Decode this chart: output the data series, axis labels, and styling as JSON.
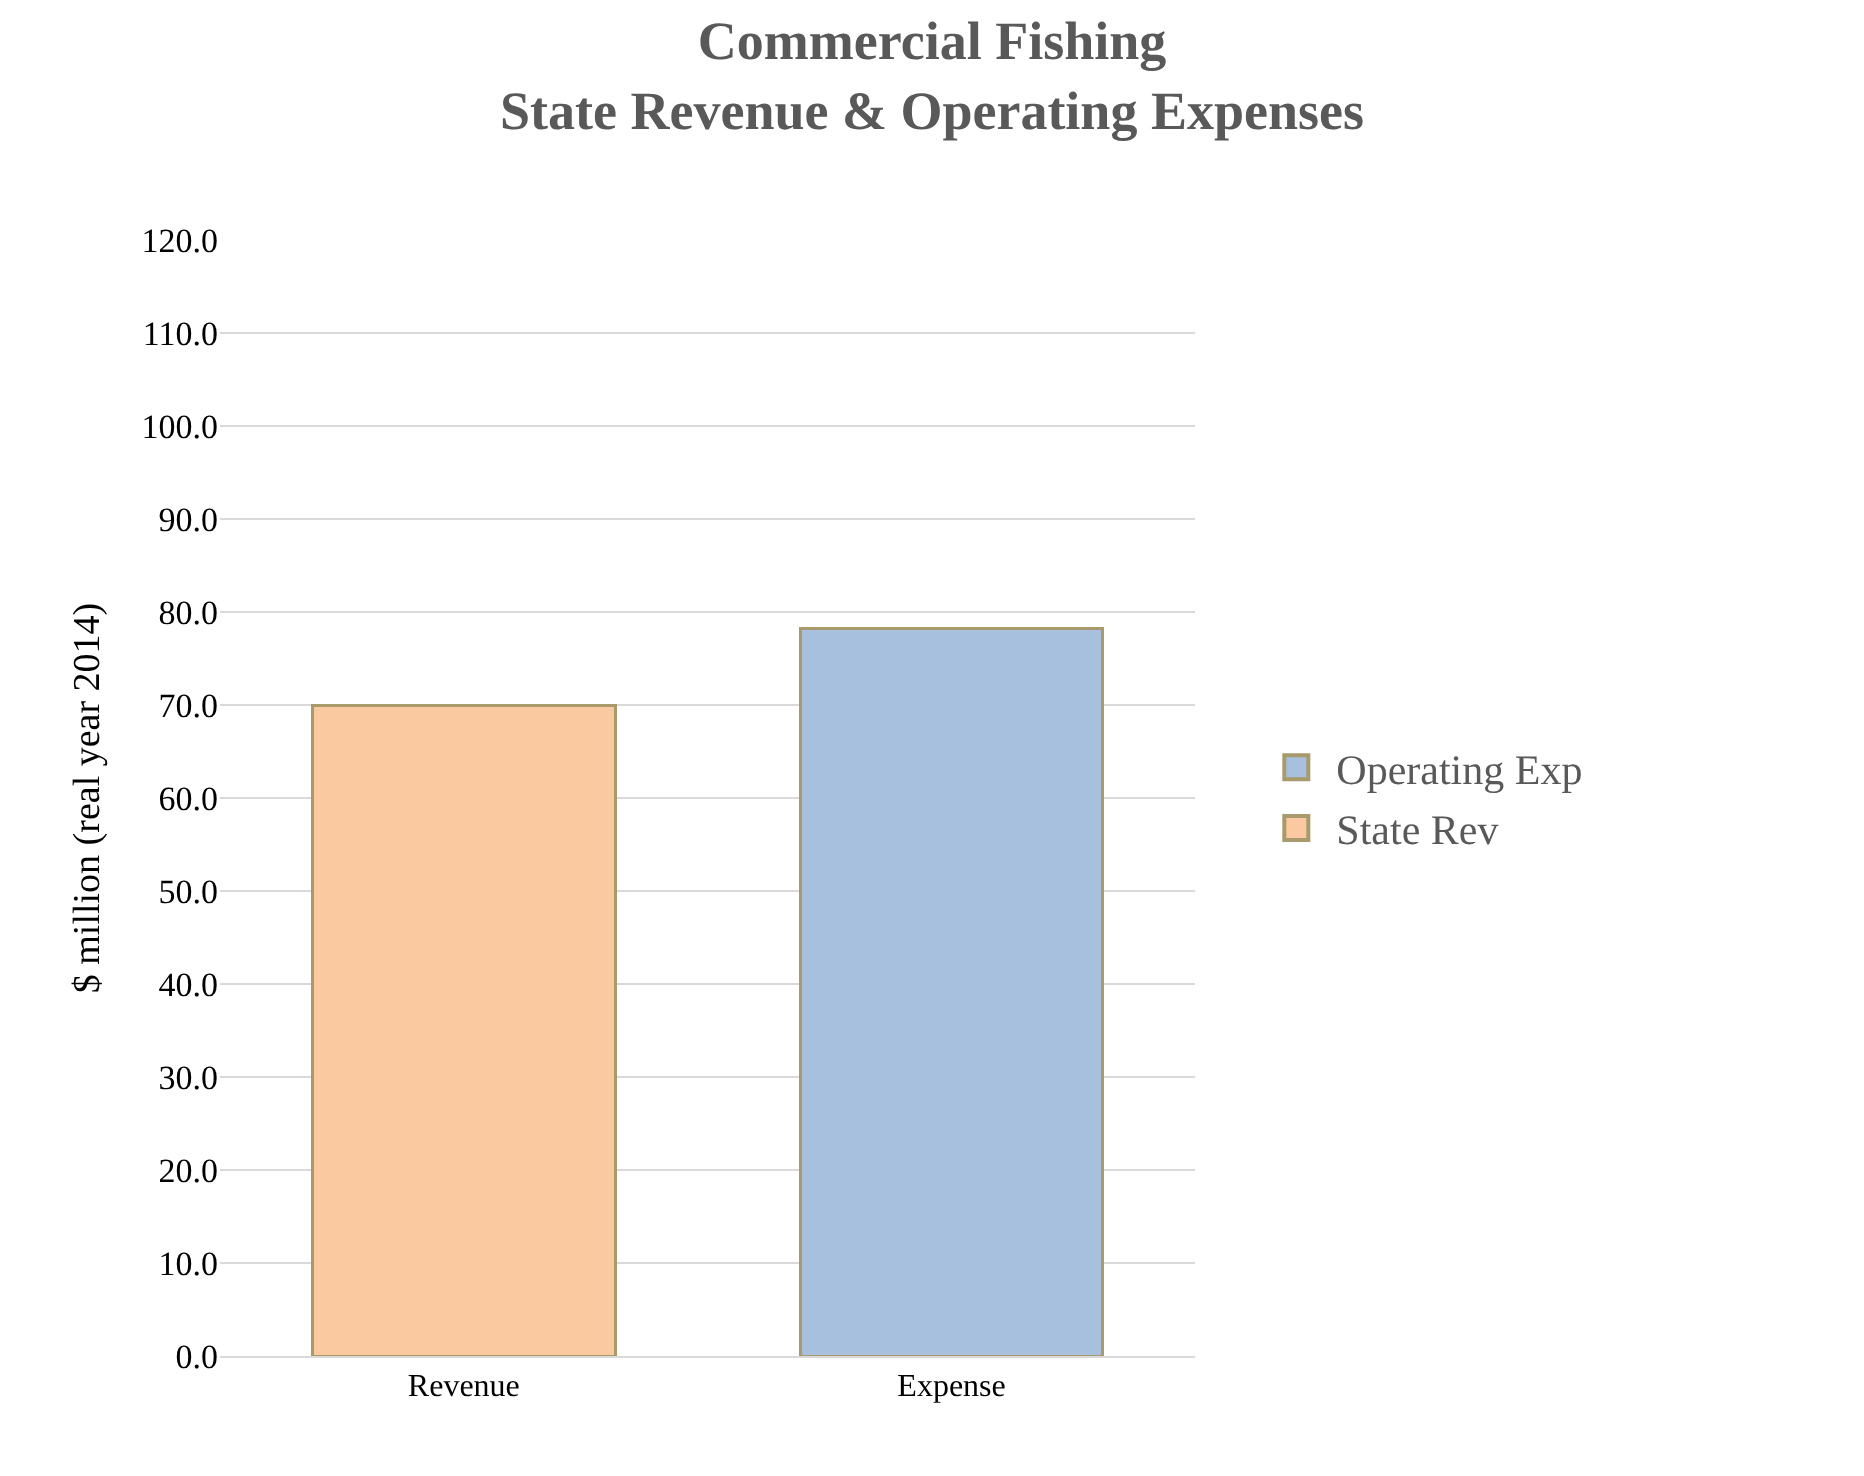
{
  "chart_data": {
    "type": "bar",
    "title": "Commercial Fishing\nState Revenue & Operating Expenses",
    "ylabel": "$ million (real year 2014)",
    "categories": [
      "Revenue",
      "Expense"
    ],
    "stacked": true,
    "series": [
      {
        "name": "State Rev",
        "color": "#fac99f",
        "values": [
          70.0,
          null
        ]
      },
      {
        "name": "Operating Exp",
        "color": "#a7c0de",
        "values": [
          null,
          78.2
        ]
      }
    ],
    "ylim": [
      0,
      120
    ],
    "yticks": [
      {
        "value": 0,
        "label": "0.0"
      },
      {
        "value": 10,
        "label": "10.0"
      },
      {
        "value": 20,
        "label": "20.0"
      },
      {
        "value": 30,
        "label": "30.0"
      },
      {
        "value": 40,
        "label": "40.0"
      },
      {
        "value": 50,
        "label": "50.0"
      },
      {
        "value": 60,
        "label": "60.0"
      },
      {
        "value": 70,
        "label": "70.0"
      },
      {
        "value": 80,
        "label": "80.0"
      },
      {
        "value": 90,
        "label": "90.0"
      },
      {
        "value": 100,
        "label": "100.0"
      },
      {
        "value": 110,
        "label": "110.0"
      },
      {
        "value": 120,
        "label": "120.0"
      }
    ],
    "grid": "y",
    "legend": "right"
  }
}
